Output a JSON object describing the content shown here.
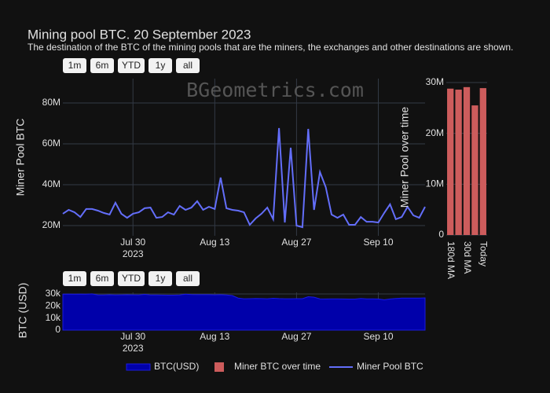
{
  "range_buttons": [
    "1m",
    "6m",
    "YTD",
    "1y",
    "all"
  ],
  "chart_data": [
    {
      "type": "line",
      "title": "Mining pool BTC. 20 September 2023",
      "subtitle": "The destination of the BTC of the mining pools that are the miners, the exchanges and other destinations are shown.",
      "watermark": "BGeometrics.com",
      "y_label": "Miner Pool BTC",
      "x": [
        "2023-07-18",
        "2023-07-19",
        "2023-07-20",
        "2023-07-21",
        "2023-07-22",
        "2023-07-23",
        "2023-07-24",
        "2023-07-25",
        "2023-07-26",
        "2023-07-27",
        "2023-07-28",
        "2023-07-29",
        "2023-07-30",
        "2023-07-31",
        "2023-08-01",
        "2023-08-02",
        "2023-08-03",
        "2023-08-04",
        "2023-08-05",
        "2023-08-06",
        "2023-08-07",
        "2023-08-08",
        "2023-08-09",
        "2023-08-10",
        "2023-08-11",
        "2023-08-12",
        "2023-08-13",
        "2023-08-14",
        "2023-08-15",
        "2023-08-16",
        "2023-08-17",
        "2023-08-18",
        "2023-08-19",
        "2023-08-20",
        "2023-08-21",
        "2023-08-22",
        "2023-08-23",
        "2023-08-24",
        "2023-08-25",
        "2023-08-26",
        "2023-08-27",
        "2023-08-28",
        "2023-08-29",
        "2023-08-30",
        "2023-08-31",
        "2023-09-01",
        "2023-09-02",
        "2023-09-03",
        "2023-09-04",
        "2023-09-05",
        "2023-09-06",
        "2023-09-07",
        "2023-09-08",
        "2023-09-09",
        "2023-09-10",
        "2023-09-11",
        "2023-09-12",
        "2023-09-13",
        "2023-09-14",
        "2023-09-15",
        "2023-09-16",
        "2023-09-17",
        "2023-09-18"
      ],
      "series": [
        {
          "name": "Miner Pool BTC",
          "color": "#636efa",
          "values": [
            25800000,
            27700000,
            26500000,
            24200000,
            28100000,
            28100000,
            27300000,
            26200000,
            25400000,
            31200000,
            25800000,
            23800000,
            25800000,
            26500000,
            28500000,
            28800000,
            23800000,
            24200000,
            26500000,
            25400000,
            29600000,
            27700000,
            28800000,
            31900000,
            27700000,
            29200000,
            28100000,
            43500000,
            28500000,
            27700000,
            27300000,
            26500000,
            20400000,
            23500000,
            25800000,
            28800000,
            23100000,
            67700000,
            21500000,
            58100000,
            20000000,
            19200000,
            67300000,
            27700000,
            46200000,
            38800000,
            25400000,
            23800000,
            25400000,
            20400000,
            20400000,
            24200000,
            21900000,
            21900000,
            21500000,
            26200000,
            30400000,
            23100000,
            24200000,
            29200000,
            25000000,
            23800000,
            29200000
          ]
        }
      ],
      "xlim": [
        "2023-07-18",
        "2023-09-18"
      ],
      "xticks": [
        {
          "value": "2023-07-30",
          "label": "Jul 30"
        },
        {
          "value": "2023-08-13",
          "label": "Aug 13"
        },
        {
          "value": "2023-08-27",
          "label": "Aug 27"
        },
        {
          "value": "2023-09-10",
          "label": "Sep 10"
        }
      ],
      "xtick_year": "2023",
      "ylim": [
        15000000,
        91900000
      ],
      "yticks": [
        {
          "value": 20000000,
          "label": "20M"
        },
        {
          "value": 40000000,
          "label": "40M"
        },
        {
          "value": 60000000,
          "label": "60M"
        },
        {
          "value": 80000000,
          "label": "80M"
        }
      ],
      "grid": true
    },
    {
      "type": "bar",
      "y_label": "Miner Pool over time",
      "categories": [
        "180d MA",
        null,
        "30d MA",
        null,
        "Today"
      ],
      "series": [
        {
          "name": "Miner BTC over time",
          "color": "#cd5c5c",
          "values": [
            28800000,
            28600000,
            29100000,
            25500000,
            28900000
          ]
        }
      ],
      "ylim": [
        0,
        30000000
      ],
      "yticks": [
        0,
        {
          "value": 10000000,
          "label": "10M"
        },
        {
          "value": 20000000,
          "label": "20M"
        },
        {
          "value": 30000000,
          "label": "30M"
        }
      ],
      "grid": true
    },
    {
      "type": "area",
      "y_label": "BTC (USD)",
      "x": [
        "2023-07-18",
        "2023-07-19",
        "2023-07-20",
        "2023-07-21",
        "2023-07-22",
        "2023-07-23",
        "2023-07-24",
        "2023-07-25",
        "2023-07-26",
        "2023-07-27",
        "2023-07-28",
        "2023-07-29",
        "2023-07-30",
        "2023-07-31",
        "2023-08-01",
        "2023-08-02",
        "2023-08-03",
        "2023-08-04",
        "2023-08-05",
        "2023-08-06",
        "2023-08-07",
        "2023-08-08",
        "2023-08-09",
        "2023-08-10",
        "2023-08-11",
        "2023-08-12",
        "2023-08-13",
        "2023-08-14",
        "2023-08-15",
        "2023-08-16",
        "2023-08-17",
        "2023-08-18",
        "2023-08-19",
        "2023-08-20",
        "2023-08-21",
        "2023-08-22",
        "2023-08-23",
        "2023-08-24",
        "2023-08-25",
        "2023-08-26",
        "2023-08-27",
        "2023-08-28",
        "2023-08-29",
        "2023-08-30",
        "2023-08-31",
        "2023-09-01",
        "2023-09-02",
        "2023-09-03",
        "2023-09-04",
        "2023-09-05",
        "2023-09-06",
        "2023-09-07",
        "2023-09-08",
        "2023-09-09",
        "2023-09-10",
        "2023-09-11",
        "2023-09-12",
        "2023-09-13",
        "2023-09-14",
        "2023-09-15",
        "2023-09-16",
        "2023-09-17",
        "2023-09-18"
      ],
      "series": [
        {
          "name": "BTC(USD)",
          "color": "#0000aa",
          "values": [
            29860,
            29900,
            29800,
            29900,
            29790,
            30080,
            29170,
            29220,
            29350,
            29210,
            29310,
            29350,
            29280,
            29230,
            29700,
            29180,
            29190,
            29110,
            29050,
            29040,
            29180,
            29770,
            29560,
            29430,
            29400,
            29410,
            29280,
            29400,
            29170,
            28700,
            26620,
            26050,
            26100,
            26190,
            26120,
            26050,
            26430,
            26160,
            26050,
            26010,
            26090,
            26110,
            27720,
            27300,
            25940,
            25800,
            25870,
            25970,
            25810,
            25780,
            25750,
            26240,
            25910,
            25900,
            25840,
            25160,
            25840,
            26220,
            26530,
            26610,
            26570,
            26530,
            26760
          ]
        }
      ],
      "xlim": [
        "2023-07-18",
        "2023-09-18"
      ],
      "xticks": [
        {
          "value": "2023-07-30",
          "label": "Jul 30"
        },
        {
          "value": "2023-08-13",
          "label": "Aug 13"
        },
        {
          "value": "2023-08-27",
          "label": "Aug 27"
        },
        {
          "value": "2023-09-10",
          "label": "Sep 10"
        }
      ],
      "xtick_year": "2023",
      "ylim": [
        0,
        31300
      ],
      "yticks": [
        0,
        {
          "value": 10000,
          "label": "10k"
        },
        {
          "value": 20000,
          "label": "20k"
        },
        {
          "value": 30000,
          "label": "30k"
        }
      ],
      "grid": true
    }
  ]
}
